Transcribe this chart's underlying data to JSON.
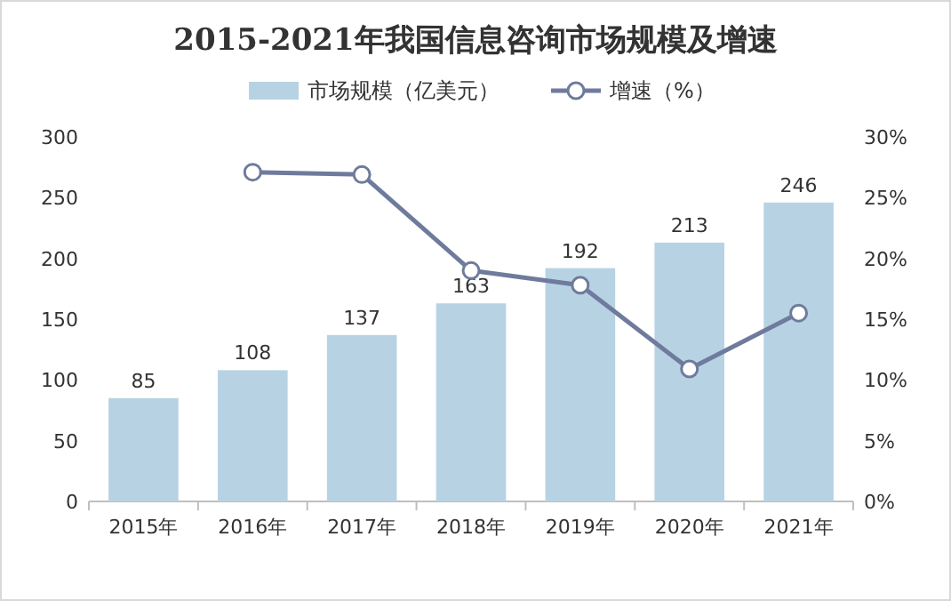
{
  "chart_data": {
    "type": "bar",
    "title": "2015-2021年我国信息咨询市场规模及增速",
    "categories": [
      "2015年",
      "2016年",
      "2017年",
      "2018年",
      "2019年",
      "2020年",
      "2021年"
    ],
    "series": [
      {
        "name": "市场规模（亿美元）",
        "color": "#b7d3e3",
        "values": [
          85,
          108,
          137,
          163,
          192,
          213,
          246
        ],
        "value_labels": [
          "85",
          "108",
          "137",
          "163",
          "192",
          "213",
          "246"
        ]
      },
      {
        "name": "增速（%）",
        "type": "line",
        "axis": "y2",
        "color": "#6f7b9c",
        "values": [
          null,
          27.1,
          26.9,
          19.0,
          17.8,
          10.9,
          15.5
        ]
      }
    ],
    "ylim": [
      0,
      300
    ],
    "yticks": [
      0,
      50,
      100,
      150,
      200,
      250,
      300
    ],
    "y2lim": [
      0,
      30
    ],
    "y2ticks": [
      {
        "value": 0,
        "label": "0%"
      },
      {
        "value": 5,
        "label": "5%"
      },
      {
        "value": 10,
        "label": "10%"
      },
      {
        "value": 15,
        "label": "15%"
      },
      {
        "value": 20,
        "label": "20%"
      },
      {
        "value": 25,
        "label": "25%"
      },
      {
        "value": 30,
        "label": "30%"
      }
    ],
    "marker": "circle",
    "legend": "top",
    "grid": false
  }
}
